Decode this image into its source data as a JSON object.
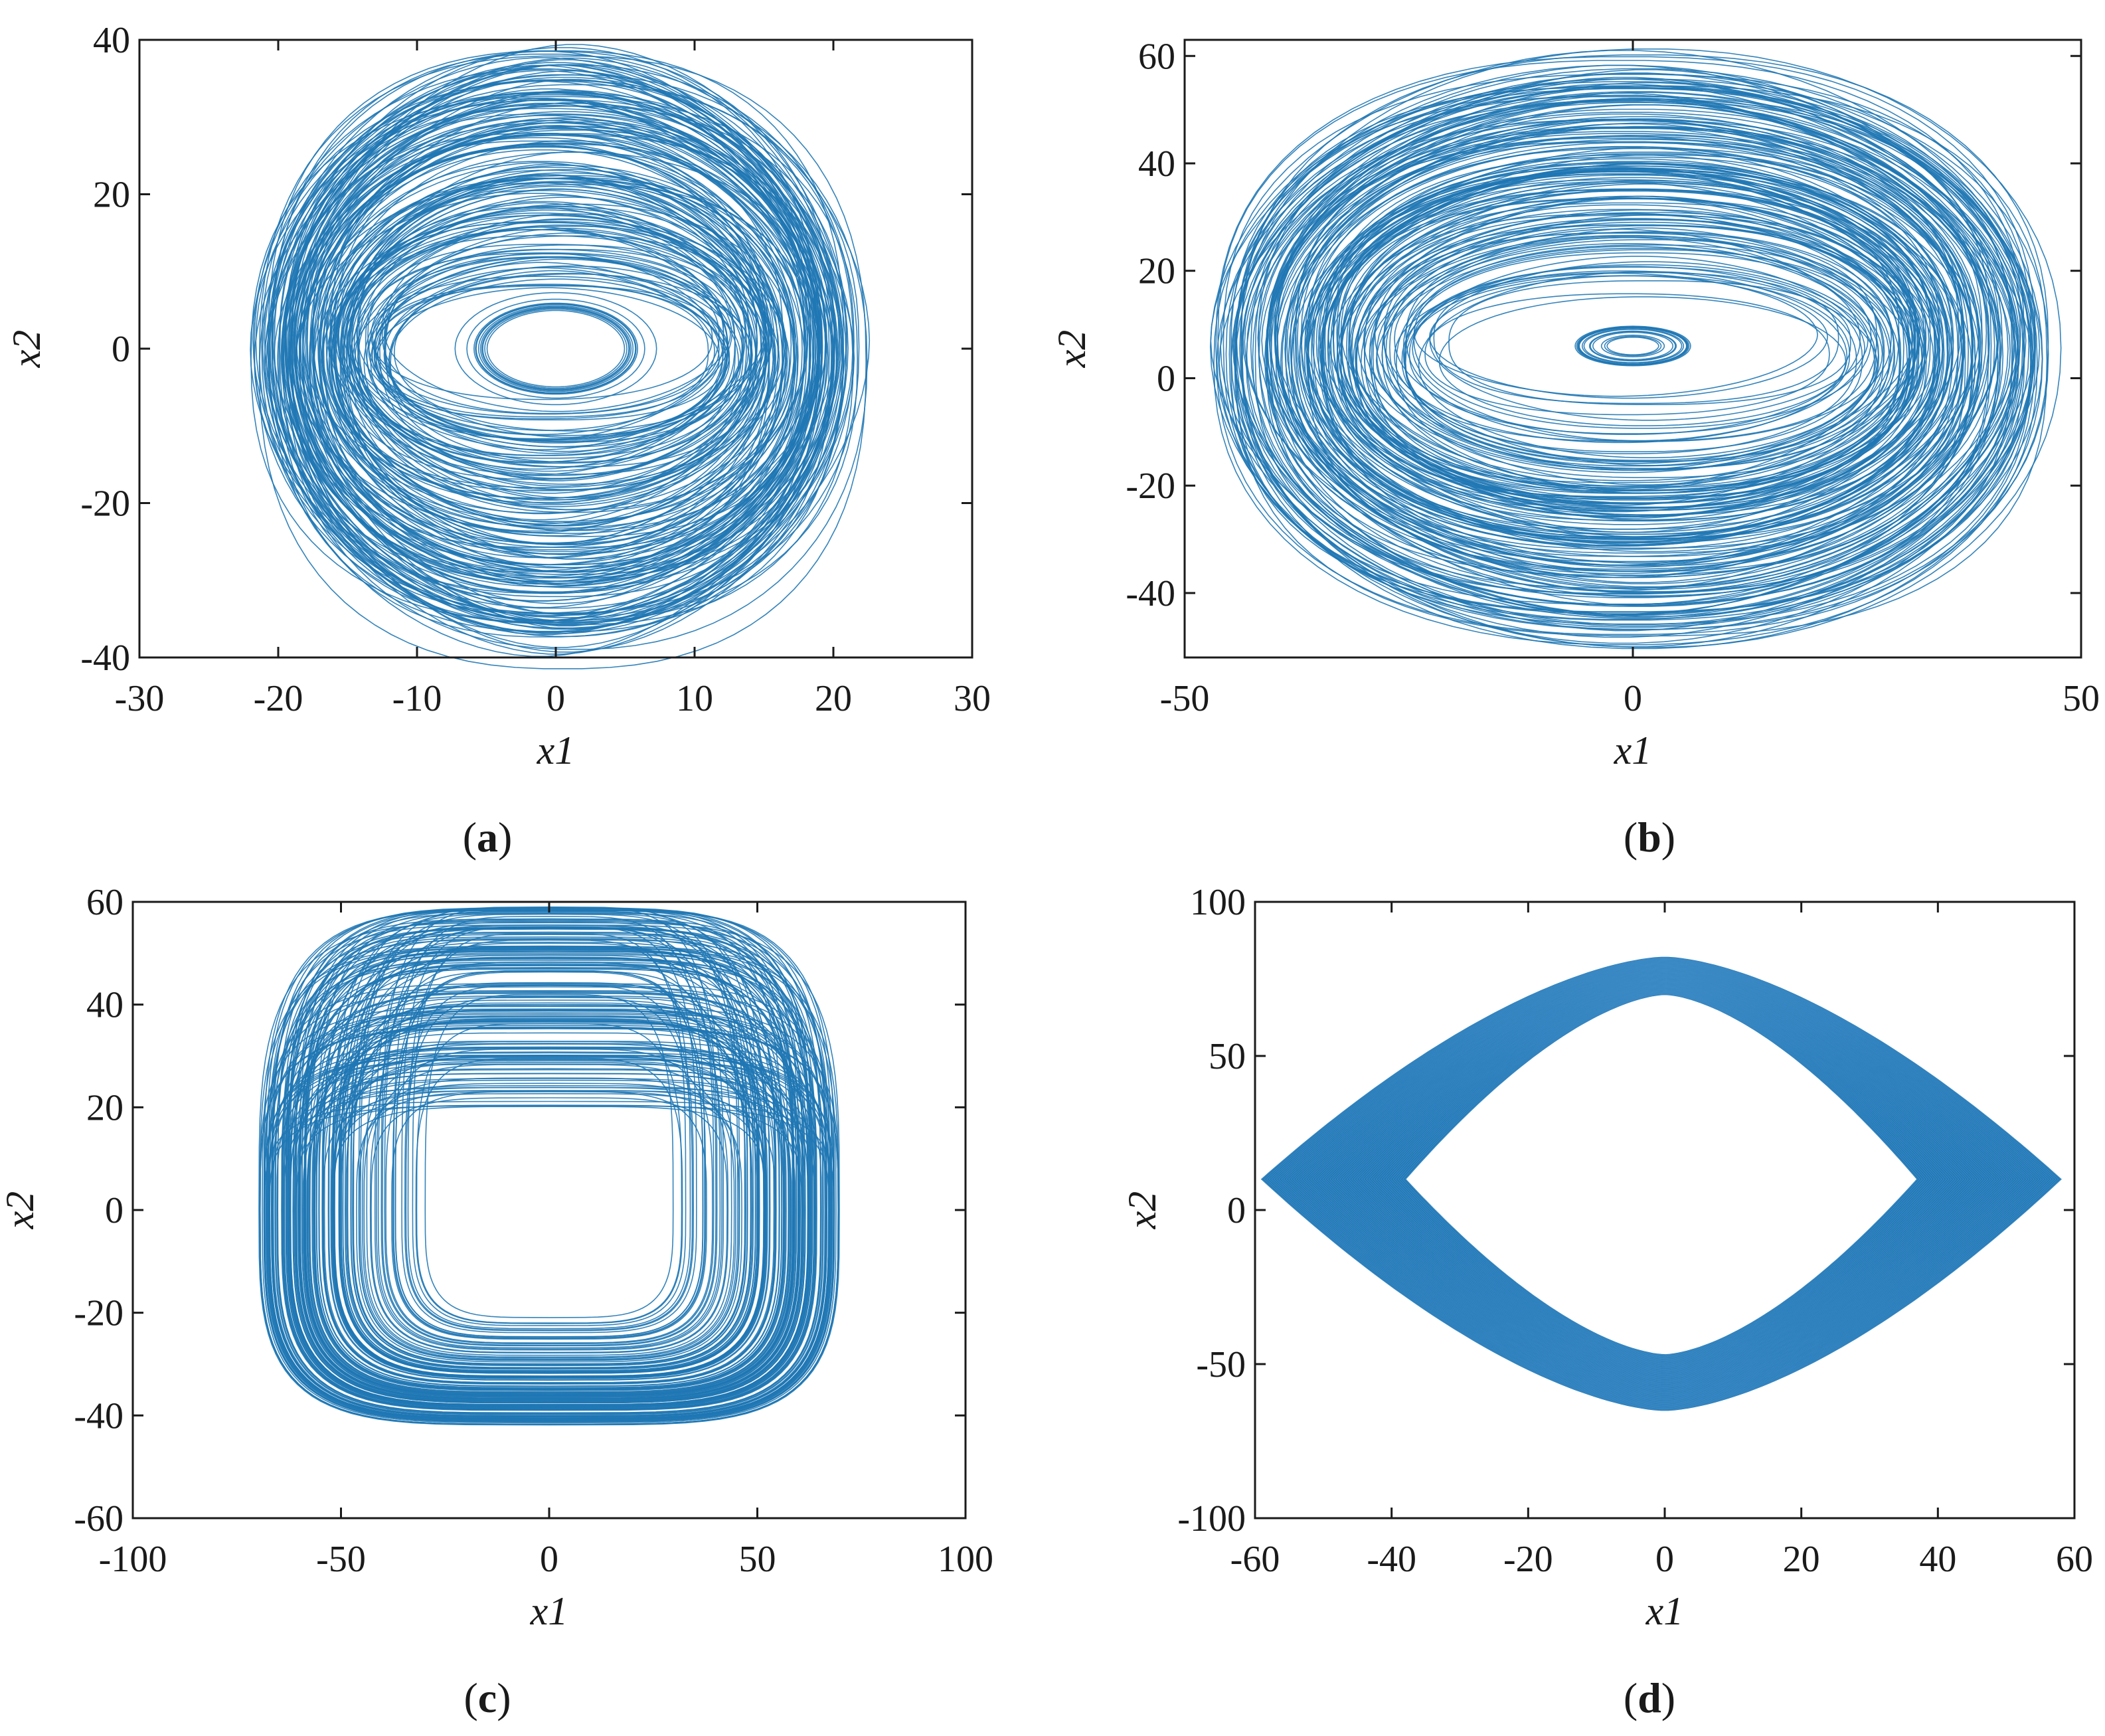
{
  "figure": {
    "line_color": "#1f77b4",
    "axis_color": "#1a1a1a"
  },
  "chart_data": [
    {
      "panel_label": "a",
      "type": "line",
      "plot": "phase-portrait",
      "xlabel": "x1",
      "ylabel": "x2",
      "xlim": [
        -30,
        30
      ],
      "ylim": [
        -40,
        40
      ],
      "xticks": [
        -30,
        -20,
        -10,
        0,
        10,
        20,
        30
      ],
      "yticks": [
        -40,
        -20,
        0,
        20,
        40
      ],
      "xtick_labels": [
        "-30",
        "-20",
        "-10",
        "0",
        "10",
        "20",
        "30"
      ],
      "ytick_labels": [
        "-40",
        "-20",
        "0",
        "20",
        "40"
      ],
      "grid": false,
      "series": [
        {
          "color": "#1f77b4",
          "description_values": {
            "x_range": [
              -22,
              21
            ],
            "y_range": [
              -37,
              40
            ],
            "inner_loop_x_range": [
              -8,
              8
            ],
            "inner_loop_y_range": [
              -8,
              8
            ]
          }
        }
      ]
    },
    {
      "panel_label": "b",
      "type": "line",
      "plot": "phase-portrait",
      "xlabel": "x1",
      "ylabel": "x2",
      "xlim": [
        -50,
        50
      ],
      "ylim": [
        -52,
        63
      ],
      "xticks": [
        -50,
        0,
        50
      ],
      "yticks": [
        -40,
        -20,
        0,
        20,
        40,
        60
      ],
      "xtick_labels": [
        "-50",
        "0",
        "50"
      ],
      "ytick_labels": [
        "-40",
        "-20",
        "0",
        "20",
        "40",
        "60"
      ],
      "grid": false,
      "series": [
        {
          "color": "#1f77b4",
          "description_values": {
            "x_range": [
              -46,
              45
            ],
            "y_range": [
              -51,
              62
            ],
            "inner_loop_x_range": [
              -5,
              5
            ],
            "inner_loop_y_range": [
              2,
              10
            ]
          }
        }
      ]
    },
    {
      "panel_label": "c",
      "type": "line",
      "plot": "phase-portrait",
      "xlabel": "x1",
      "ylabel": "x2",
      "xlim": [
        -100,
        100
      ],
      "ylim": [
        -60,
        60
      ],
      "xticks": [
        -100,
        -50,
        0,
        50,
        100
      ],
      "yticks": [
        -60,
        -40,
        -20,
        0,
        20,
        40,
        60
      ],
      "xtick_labels": [
        "-100",
        "-50",
        "0",
        "50",
        "100"
      ],
      "ytick_labels": [
        "-60",
        "-40",
        "-20",
        "0",
        "20",
        "40",
        "60"
      ],
      "grid": false,
      "series": [
        {
          "color": "#1f77b4",
          "description_values": {
            "x_range": [
              -70,
              70
            ],
            "y_range": [
              -42,
              59
            ],
            "hole_x_range": [
              -28,
              28
            ],
            "hole_y_range": [
              -20,
              20
            ]
          }
        }
      ]
    },
    {
      "panel_label": "d",
      "type": "area",
      "plot": "phase-portrait",
      "xlabel": "x1",
      "ylabel": "x2",
      "xlim": [
        -60,
        60
      ],
      "ylim": [
        -100,
        100
      ],
      "xticks": [
        -60,
        -40,
        -20,
        0,
        20,
        40,
        60
      ],
      "yticks": [
        -100,
        -50,
        0,
        50,
        100
      ],
      "xtick_labels": [
        "-60",
        "-40",
        "-20",
        "0",
        "20",
        "40",
        "60"
      ],
      "ytick_labels": [
        "-100",
        "-50",
        "0",
        "50",
        "100"
      ],
      "grid": false,
      "series": [
        {
          "color": "#1f77b4",
          "description_values": {
            "outer_x_range": [
              -59,
              58
            ],
            "outer_y_range": [
              -65,
              82
            ],
            "hole_x_range": [
              -38,
              37
            ],
            "hole_y_range": [
              -47,
              70
            ]
          }
        }
      ]
    }
  ]
}
